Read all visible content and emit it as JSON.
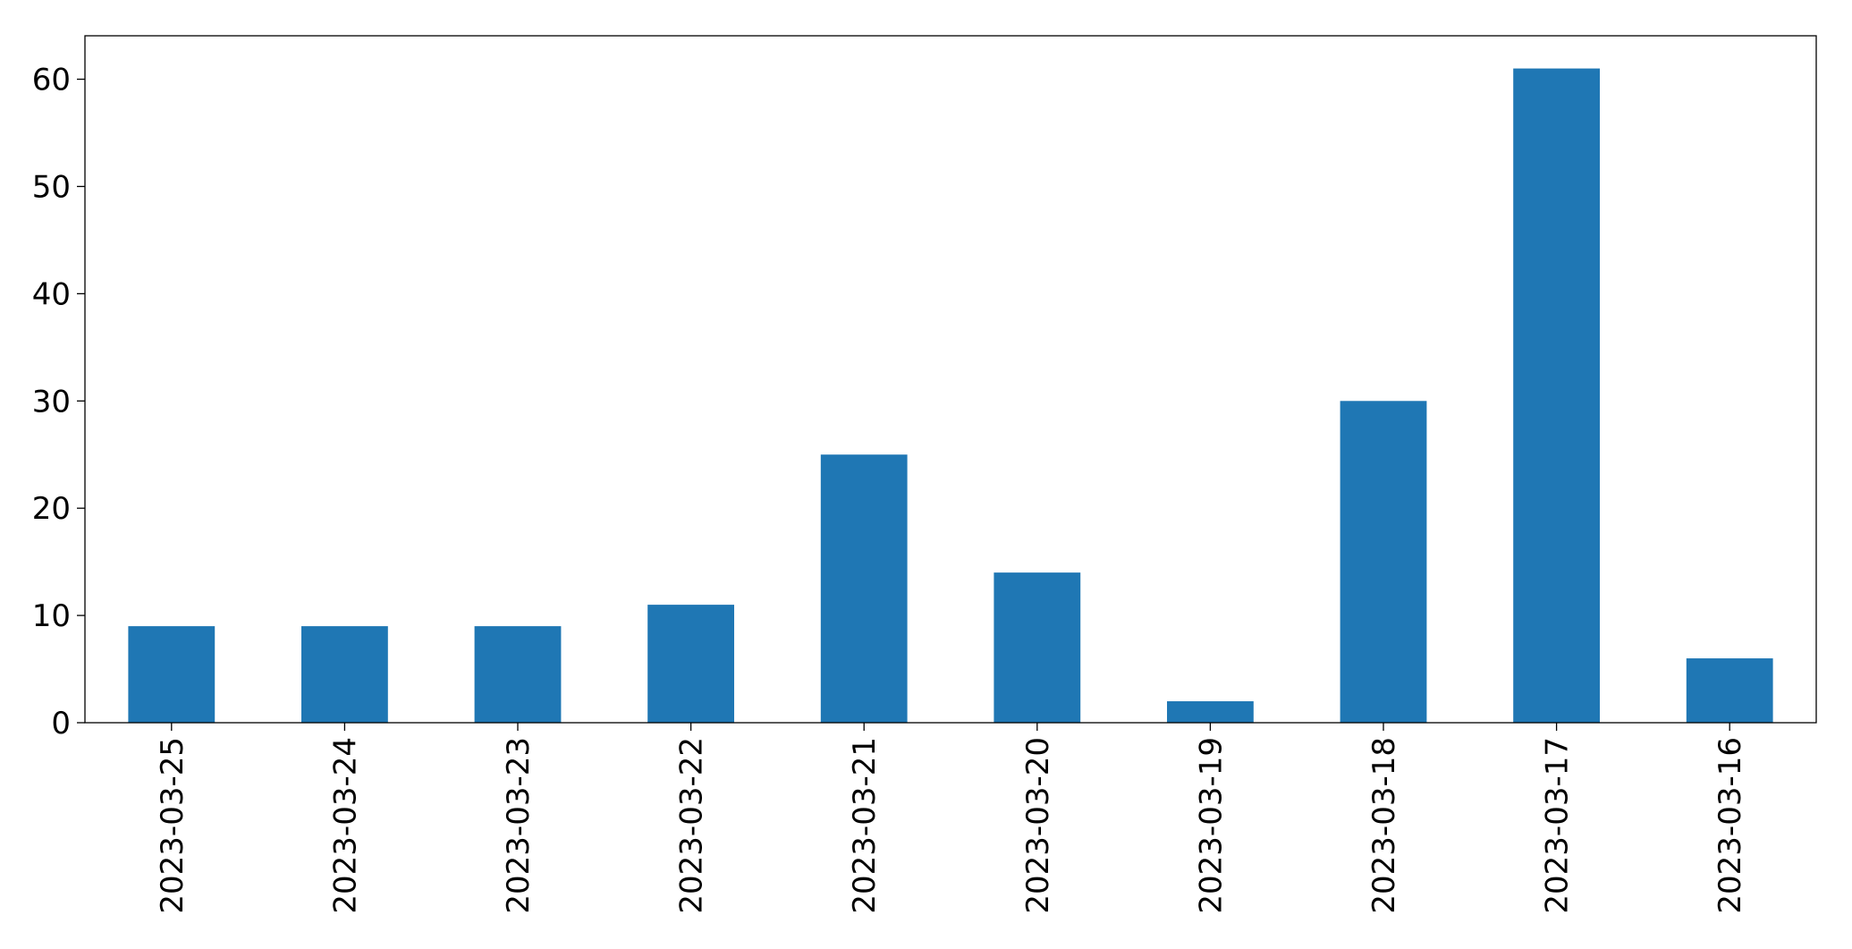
{
  "chart_data": {
    "type": "bar",
    "categories": [
      "2023-03-25",
      "2023-03-24",
      "2023-03-23",
      "2023-03-22",
      "2023-03-21",
      "2023-03-20",
      "2023-03-19",
      "2023-03-18",
      "2023-03-17",
      "2023-03-16"
    ],
    "values": [
      9,
      9,
      9,
      11,
      25,
      14,
      2,
      30,
      61,
      6
    ],
    "color": "#1f77b4",
    "ylim": [
      0,
      64.05
    ],
    "yticks": [
      0,
      10,
      20,
      30,
      40,
      50,
      60
    ],
    "grid": false
  }
}
